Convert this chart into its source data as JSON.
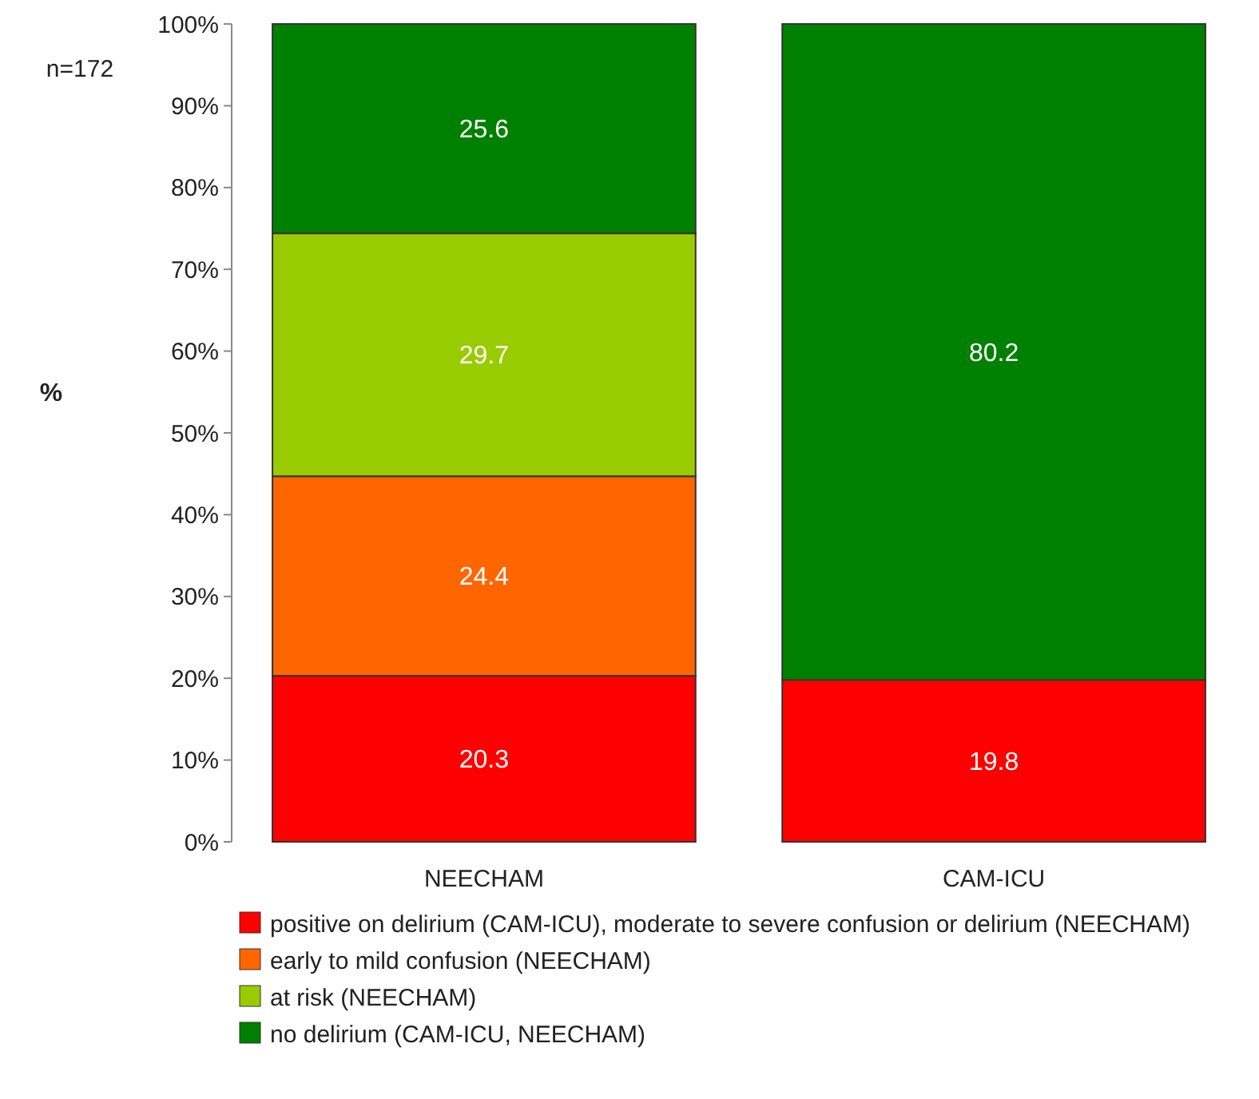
{
  "chart_data": {
    "type": "bar",
    "stacked": true,
    "ylabel": "%",
    "annotations": [
      "n=172"
    ],
    "categories": [
      "NEECHAM",
      "CAM-ICU"
    ],
    "series": [
      {
        "name": "positive on delirium (CAM-ICU), moderate to severe confusion or delirium (NEECHAM)",
        "color": "#ff0000",
        "values": [
          20.3,
          19.8
        ]
      },
      {
        "name": "early to mild confusion (NEECHAM)",
        "color": "#ff6600",
        "values": [
          24.4,
          null
        ]
      },
      {
        "name": "at risk (NEECHAM)",
        "color": "#99cc00",
        "values": [
          29.7,
          null
        ]
      },
      {
        "name": "no delirium (CAM-ICU, NEECHAM)",
        "color": "#008000",
        "values": [
          25.6,
          80.2
        ]
      }
    ],
    "ylim": [
      0,
      100
    ],
    "yticks": [
      {
        "value": 0,
        "label": "0%"
      },
      {
        "value": 10,
        "label": "10%"
      },
      {
        "value": 20,
        "label": "20%"
      },
      {
        "value": 30,
        "label": "30%"
      },
      {
        "value": 40,
        "label": "40%"
      },
      {
        "value": 50,
        "label": "50%"
      },
      {
        "value": 60,
        "label": "60%"
      },
      {
        "value": 70,
        "label": "70%"
      },
      {
        "value": 80,
        "label": "80%"
      },
      {
        "value": 90,
        "label": "90%"
      },
      {
        "value": 100,
        "label": "100%"
      }
    ],
    "data_labels": true,
    "legend": "bottom",
    "grid": false
  }
}
